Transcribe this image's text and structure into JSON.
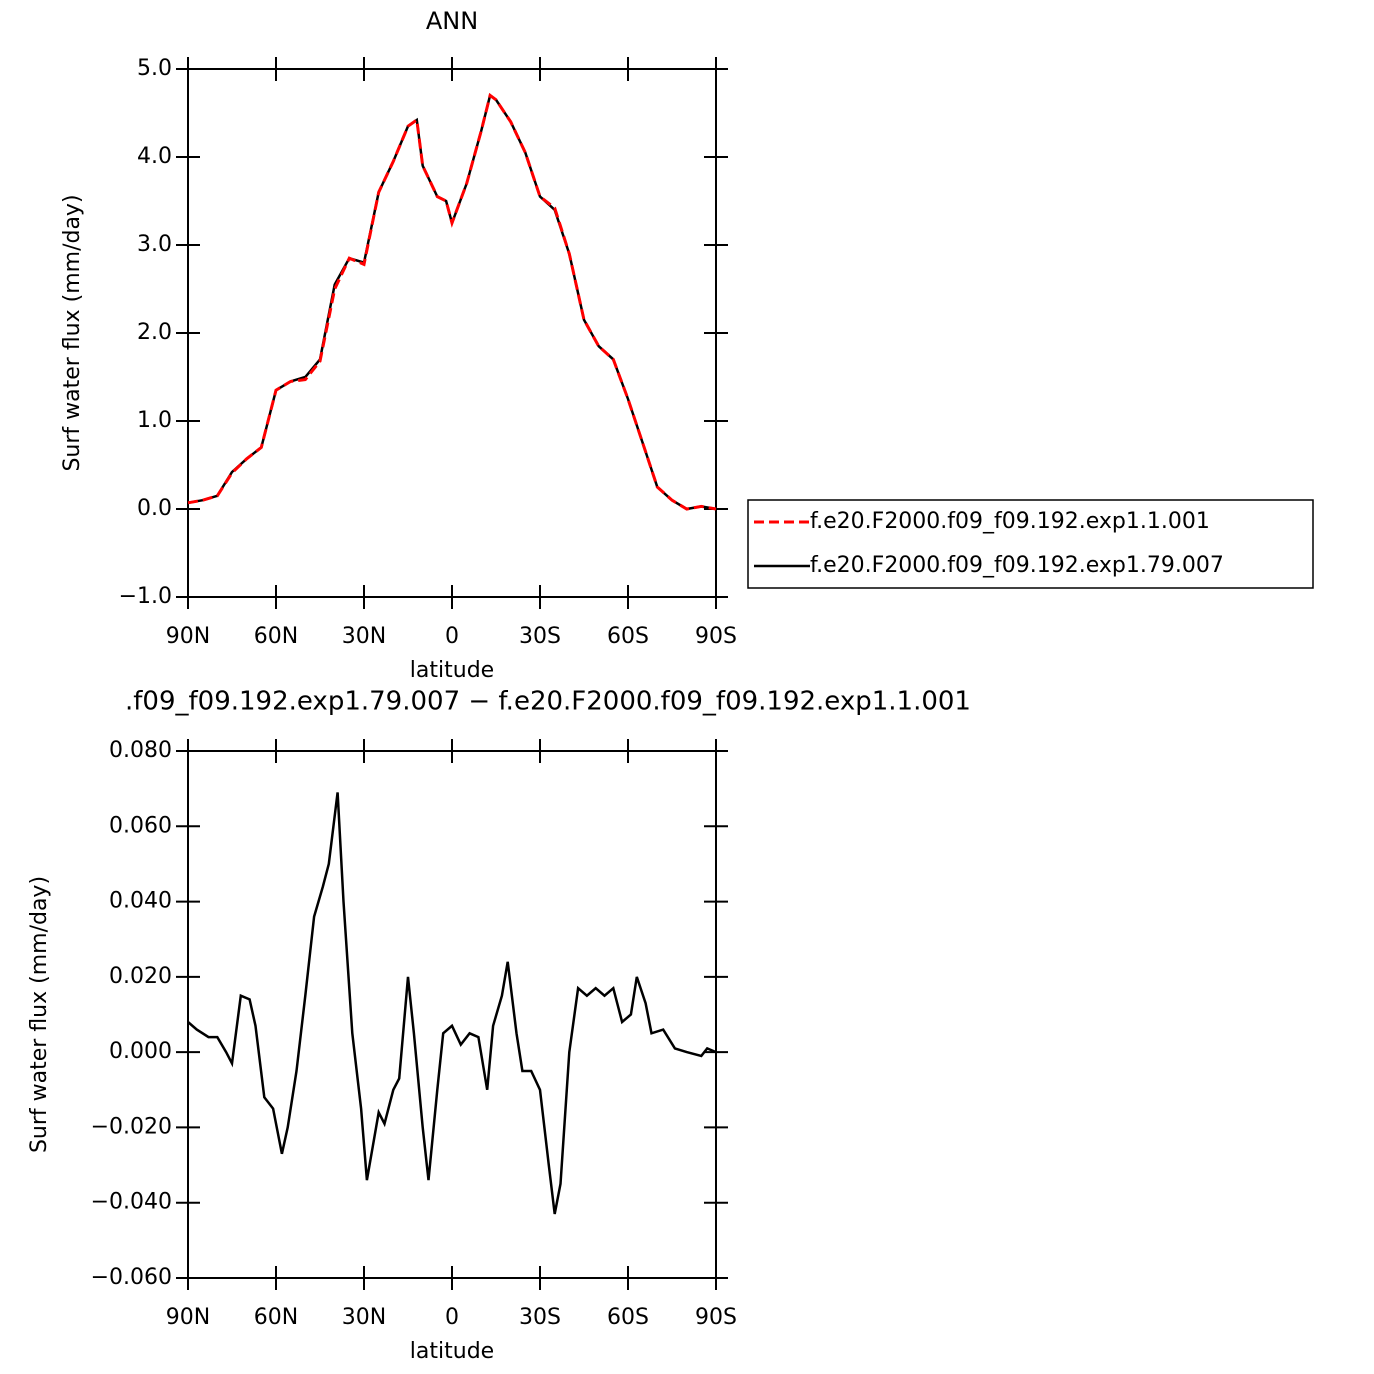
{
  "chart_data": [
    {
      "type": "line",
      "title": "ANN",
      "xlabel": "latitude",
      "ylabel": "Surf water flux (mm/day)",
      "x": [
        90,
        85,
        80,
        75,
        70,
        65,
        60,
        55,
        50,
        45,
        40,
        35,
        30,
        25,
        20,
        15,
        12,
        10,
        5,
        2,
        0,
        -5,
        -10,
        -13,
        -15,
        -20,
        -25,
        -30,
        -35,
        -40,
        -45,
        -50,
        -55,
        -60,
        -65,
        -70,
        -75,
        -80,
        -85,
        -90
      ],
      "xlim": [
        90,
        -90
      ],
      "xticks": [
        {
          "value": 90,
          "label": "90N"
        },
        {
          "value": 60,
          "label": "60N"
        },
        {
          "value": 30,
          "label": "30N"
        },
        0,
        {
          "value": -30,
          "label": "30S"
        },
        {
          "value": -60,
          "label": "60S"
        },
        {
          "value": -90,
          "label": "90S"
        }
      ],
      "ylim": [
        -1.0,
        5.0
      ],
      "yticks": [
        {
          "value": -1.0,
          "label": "−1.0"
        },
        {
          "value": 0,
          "label": "0.0"
        },
        {
          "value": 1.0,
          "label": "1.0"
        },
        {
          "value": 2.0,
          "label": "2.0"
        },
        {
          "value": 3.0,
          "label": "3.0"
        },
        {
          "value": 4.0,
          "label": "4.0"
        },
        {
          "value": 5.0,
          "label": "5.0"
        }
      ],
      "legend": "right",
      "series": [
        {
          "name": "f.e20.F2000.f09_f09.192.exp1.1.001",
          "color": "#ff0000",
          "dash": true,
          "values": [
            0.07,
            0.1,
            0.15,
            0.41,
            0.57,
            0.7,
            1.35,
            1.45,
            1.47,
            1.68,
            2.5,
            2.85,
            2.78,
            3.6,
            3.95,
            4.35,
            4.42,
            3.9,
            3.55,
            3.5,
            3.25,
            3.7,
            4.3,
            4.7,
            4.65,
            4.4,
            4.05,
            3.55,
            3.42,
            2.9,
            2.15,
            1.85,
            1.7,
            1.25,
            0.75,
            0.25,
            0.1,
            0.0,
            0.03,
            0.0
          ]
        },
        {
          "name": "f.e20.F2000.f09_f09.192.exp1.79.007",
          "color": "#000000",
          "dash": false,
          "values": [
            0.07,
            0.1,
            0.15,
            0.42,
            0.57,
            0.7,
            1.35,
            1.45,
            1.5,
            1.7,
            2.55,
            2.85,
            2.8,
            3.6,
            3.95,
            4.35,
            4.42,
            3.9,
            3.55,
            3.5,
            3.25,
            3.7,
            4.3,
            4.7,
            4.65,
            4.4,
            4.05,
            3.55,
            3.4,
            2.9,
            2.15,
            1.85,
            1.7,
            1.25,
            0.75,
            0.25,
            0.1,
            0.0,
            0.03,
            0.0
          ]
        }
      ]
    },
    {
      "type": "line",
      "title": ".f09_f09.192.exp1.79.007 − f.e20.F2000.f09_f09.192.exp1.1.001",
      "xlabel": "latitude",
      "ylabel": "Surf water flux (mm/day)",
      "x": [
        90,
        87,
        83,
        80,
        77,
        75,
        72,
        69,
        67,
        64,
        61,
        58,
        56,
        53,
        50,
        47,
        44,
        42,
        39,
        37,
        34,
        31,
        29,
        27,
        25,
        23,
        20,
        18,
        15,
        13,
        10,
        8,
        5,
        3,
        0,
        -3,
        -6,
        -9,
        -12,
        -14,
        -17,
        -19,
        -22,
        -24,
        -27,
        -30,
        -33,
        -35,
        -37,
        -40,
        -43,
        -46,
        -49,
        -52,
        -55,
        -58,
        -61,
        -63,
        -66,
        -68,
        -72,
        -76,
        -80,
        -85,
        -87,
        -90
      ],
      "xlim": [
        90,
        -90
      ],
      "xticks": [
        {
          "value": 90,
          "label": "90N"
        },
        {
          "value": 60,
          "label": "60N"
        },
        {
          "value": 30,
          "label": "30N"
        },
        0,
        {
          "value": -30,
          "label": "30S"
        },
        {
          "value": -60,
          "label": "60S"
        },
        {
          "value": -90,
          "label": "90S"
        }
      ],
      "ylim": [
        -0.06,
        0.08
      ],
      "yticks": [
        {
          "value": -0.06,
          "label": "−0.060"
        },
        {
          "value": -0.04,
          "label": "−0.040"
        },
        {
          "value": -0.02,
          "label": "−0.020"
        },
        {
          "value": 0,
          "label": "0.000"
        },
        {
          "value": 0.02,
          "label": "0.020"
        },
        {
          "value": 0.04,
          "label": "0.040"
        },
        {
          "value": 0.06,
          "label": "0.060"
        },
        {
          "value": 0.08,
          "label": "0.080"
        }
      ],
      "series": [
        {
          "color": "#000000",
          "dash": false,
          "values": [
            0.008,
            0.006,
            0.004,
            0.004,
            0.0,
            -0.003,
            0.015,
            0.014,
            0.007,
            -0.012,
            -0.015,
            -0.027,
            -0.02,
            -0.005,
            0.015,
            0.036,
            0.044,
            0.05,
            0.069,
            0.04,
            0.005,
            -0.015,
            -0.034,
            -0.025,
            -0.016,
            -0.019,
            -0.01,
            -0.007,
            0.02,
            0.005,
            -0.02,
            -0.034,
            -0.01,
            0.005,
            0.007,
            0.002,
            0.005,
            0.004,
            -0.01,
            0.007,
            0.015,
            0.024,
            0.005,
            -0.005,
            -0.005,
            -0.01,
            -0.03,
            -0.043,
            -0.035,
            0.0,
            0.017,
            0.015,
            0.017,
            0.015,
            0.017,
            0.008,
            0.01,
            0.02,
            0.013,
            0.005,
            0.006,
            0.001,
            0.0,
            -0.001,
            0.001,
            0.0
          ]
        }
      ]
    }
  ]
}
